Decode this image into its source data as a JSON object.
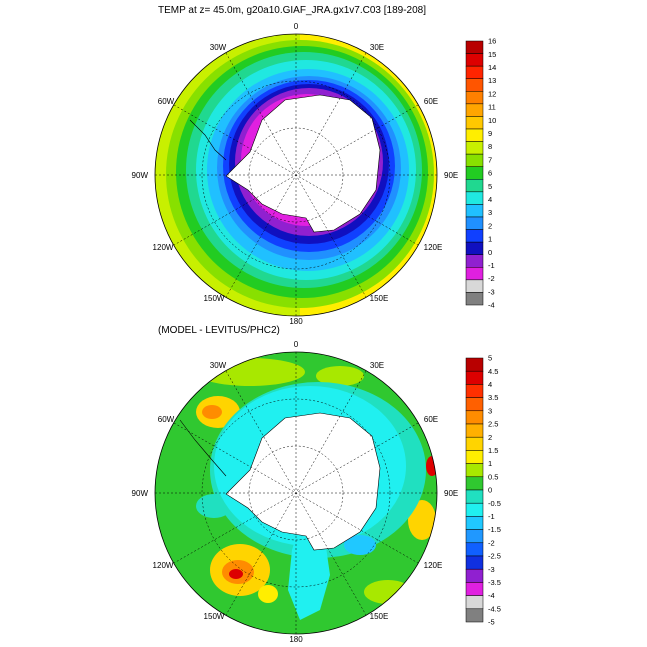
{
  "panels": [
    {
      "title": "TEMP at z=  45.0m, g20a10.GIAF_JRA.gx1v7.C03 [189-208]",
      "lon_labels": [
        "0",
        "30E",
        "60E",
        "90E",
        "120E",
        "150E",
        "180",
        "150W",
        "120W",
        "90W",
        "60W",
        "30W"
      ],
      "colorbar": {
        "labels": [
          "16",
          "15",
          "14",
          "13",
          "12",
          "11",
          "10",
          "9",
          "8",
          "7",
          "6",
          "5",
          "4",
          "3",
          "2",
          "1",
          "0",
          "-1",
          "-2",
          "-3",
          "-4"
        ],
        "colors": [
          "#b80000",
          "#dd0000",
          "#ff2400",
          "#ff5500",
          "#ff8000",
          "#ffa500",
          "#ffc800",
          "#ffee00",
          "#c8f000",
          "#88e000",
          "#22cc22",
          "#20d890",
          "#20e8e0",
          "#20c0ff",
          "#2090ff",
          "#1040ff",
          "#1010c0",
          "#9020d0",
          "#e020e0",
          "#d8d8d8",
          "#808080"
        ]
      }
    },
    {
      "title": "(MODEL - LEVITUS/PHC2)",
      "lon_labels": [
        "0",
        "30E",
        "60E",
        "90E",
        "120E",
        "150E",
        "180",
        "150W",
        "120W",
        "90W",
        "60W",
        "30W"
      ],
      "colorbar": {
        "labels": [
          "5",
          "4.5",
          "4",
          "3.5",
          "3",
          "2.5",
          "2",
          "1.5",
          "1",
          "0.5",
          "0",
          "-0.5",
          "-1",
          "-1.5",
          "-2",
          "-2.5",
          "-3",
          "-3.5",
          "-4",
          "-4.5",
          "-5"
        ],
        "colors": [
          "#b80000",
          "#dd0000",
          "#ff3000",
          "#ff6000",
          "#ff8c00",
          "#ffb000",
          "#ffd400",
          "#ffee00",
          "#a8e800",
          "#30c830",
          "#20e0c0",
          "#20f0f0",
          "#20c8ff",
          "#2098ff",
          "#1060ff",
          "#1030e0",
          "#9020d0",
          "#e020e0",
          "#d8d8d8",
          "#808080"
        ]
      }
    }
  ]
}
